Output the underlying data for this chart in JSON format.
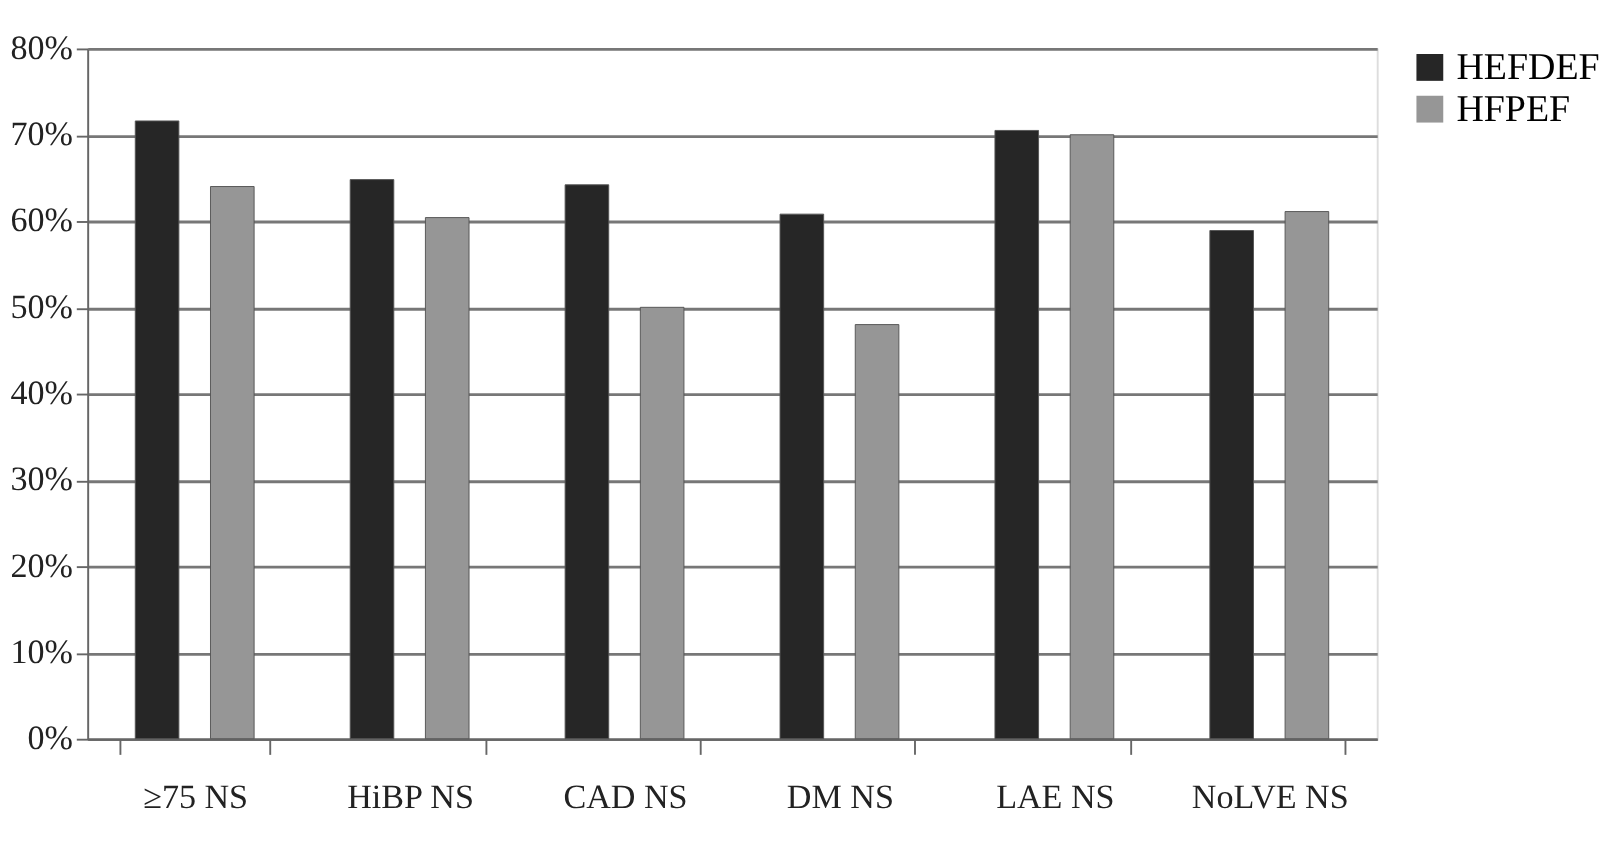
{
  "chart_data": {
    "type": "bar",
    "categories": [
      "≥75 NS",
      "HiBP NS",
      "CAD NS",
      "DM NS",
      "LAE NS",
      "NoLVE NS"
    ],
    "series": [
      {
        "name": "HEFDEF",
        "color": "#262626",
        "values": [
          71.6,
          64.8,
          64.2,
          60.8,
          70.5,
          58.9
        ]
      },
      {
        "name": "HFPEF",
        "color": "#969696",
        "values": [
          64.0,
          60.4,
          50.0,
          48.0,
          70.0,
          61.1
        ]
      }
    ],
    "ylim": [
      0,
      80
    ],
    "yticks": [
      {
        "value": 0,
        "label": "0%"
      },
      {
        "value": 10,
        "label": "10%"
      },
      {
        "value": 20,
        "label": "20%"
      },
      {
        "value": 30,
        "label": "30%"
      },
      {
        "value": 40,
        "label": "40%"
      },
      {
        "value": 50,
        "label": "50%"
      },
      {
        "value": 60,
        "label": "60%"
      },
      {
        "value": 70,
        "label": "70%"
      },
      {
        "value": 80,
        "label": "80%"
      }
    ],
    "grid": "y",
    "legend": "right"
  }
}
